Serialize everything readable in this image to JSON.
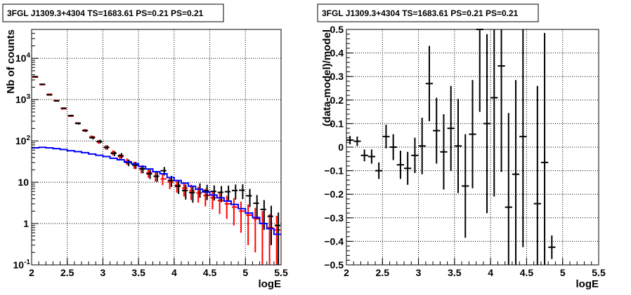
{
  "chart_data": [
    {
      "type": "histogram",
      "title": "3FGL J1309.3+4304 TS=1683.61 PS=0.21 PS=0.21",
      "xlabel": "logE",
      "ylabel": "Nb of counts",
      "xlim": [
        2,
        5.5
      ],
      "ylim": [
        0.1,
        50000
      ],
      "yscale": "log",
      "grid": true,
      "x_ticks": [
        "2",
        "2.5",
        "3",
        "3.5",
        "4",
        "4.5",
        "5",
        "5.5"
      ],
      "y_ticks": [
        {
          "value": 0.1,
          "label": "10",
          "exp": "-1"
        },
        {
          "value": 1,
          "label": "1",
          "exp": ""
        },
        {
          "value": 10,
          "label": "10",
          "exp": ""
        },
        {
          "value": 100,
          "label": "10",
          "exp": "2"
        },
        {
          "value": 1000,
          "label": "10",
          "exp": "3"
        },
        {
          "value": 10000,
          "label": "10",
          "exp": "4"
        }
      ],
      "bin_edges": [
        2.0,
        2.1,
        2.2,
        2.3,
        2.4,
        2.5,
        2.6,
        2.7,
        2.8,
        2.9,
        3.0,
        3.1,
        3.2,
        3.3,
        3.4,
        3.5,
        3.6,
        3.7,
        3.8,
        3.9,
        4.0,
        4.1,
        4.2,
        4.3,
        4.4,
        4.5,
        4.6,
        4.7,
        4.8,
        4.9,
        5.0,
        5.1,
        5.2,
        5.3,
        5.4,
        5.5
      ],
      "series": [
        {
          "color": "#ff0000",
          "style": "errorbar",
          "values": [
            3500,
            2300,
            1350,
            950,
            600,
            400,
            270,
            180,
            125,
            95,
            70,
            52,
            42,
            32,
            26,
            21,
            17,
            14,
            12,
            10,
            8.5,
            7.2,
            6.2,
            5.5,
            4.8,
            4.2,
            3.6,
            3.0,
            2.5,
            2.0,
            1.6,
            1.3,
            1.0,
            0.8,
            0.7
          ],
          "errors": [
            60,
            48,
            37,
            31,
            25,
            20,
            16,
            13,
            11,
            10,
            8.4,
            7.2,
            6.5,
            5.7,
            5.1,
            4.6,
            4.1,
            3.7,
            3.5,
            3.2,
            2.9,
            2.7,
            2.5,
            2.3,
            2.2,
            2.0,
            1.9,
            1.7,
            1.6,
            1.4,
            1.3,
            1.1,
            1.0,
            0.9,
            0.84
          ]
        },
        {
          "color": "#000000",
          "style": "errorbar",
          "values": [
            3600,
            2350,
            1300,
            930,
            620,
            410,
            265,
            178,
            120,
            97,
            70,
            50,
            44,
            30,
            26,
            21,
            16,
            14,
            19,
            11,
            8,
            6.3,
            5.6,
            6.8,
            6.2,
            6,
            5.7,
            5.9,
            6.3,
            6.4,
            4.7,
            3.1,
            2.2,
            1.5,
            0.9
          ],
          "errors": [
            60,
            48,
            36,
            30,
            25,
            20,
            16,
            13,
            11,
            10,
            8.4,
            7.1,
            6.6,
            5.5,
            5.1,
            4.6,
            4.0,
            3.7,
            4.4,
            3.3,
            2.8,
            2.5,
            2.4,
            2.6,
            2.5,
            2.4,
            2.4,
            2.4,
            2.5,
            2.5,
            2.2,
            1.8,
            1.5,
            1.2,
            0.95
          ]
        },
        {
          "color": "#0000ff",
          "style": "step",
          "values": [
            68,
            70,
            68,
            65,
            62,
            58,
            55,
            52,
            48,
            45,
            42,
            38,
            35,
            31,
            28,
            24,
            21,
            18,
            16,
            13,
            11,
            9.5,
            8,
            6.8,
            5.8,
            4.9,
            4.2,
            3.5,
            2.9,
            2.3,
            1.8,
            1.4,
            1.0,
            0.75,
            0.55
          ]
        }
      ]
    },
    {
      "type": "errorbar",
      "title": "3FGL J1309.3+4304 TS=1683.61 PS=0.21 PS=0.21",
      "xlabel": "logE",
      "ylabel": "(data-model)/model",
      "xlim": [
        2,
        5.5
      ],
      "ylim": [
        -0.5,
        0.5
      ],
      "grid": true,
      "x_ticks": [
        "2",
        "2.5",
        "3",
        "3.5",
        "4",
        "4.5",
        "5",
        "5.5"
      ],
      "y_ticks": [
        "-0.5",
        "-0.4",
        "-0.3",
        "-0.2",
        "-0.1",
        "0",
        "0.1",
        "0.2",
        "0.3",
        "0.4",
        "0.5"
      ],
      "series": [
        {
          "color": "#000000",
          "x": [
            2.05,
            2.15,
            2.25,
            2.35,
            2.45,
            2.55,
            2.65,
            2.75,
            2.85,
            2.95,
            3.05,
            3.15,
            3.25,
            3.35,
            3.45,
            3.55,
            3.65,
            3.75,
            3.85,
            3.95,
            4.05,
            4.15,
            4.25,
            4.35,
            4.45,
            4.65,
            4.75,
            4.85
          ],
          "y": [
            0.03,
            0.025,
            -0.035,
            -0.04,
            -0.1,
            0.045,
            0.0,
            -0.075,
            -0.09,
            -0.035,
            0.005,
            0.27,
            0.07,
            -0.02,
            0.08,
            0.005,
            -0.165,
            0.055,
            0.5,
            0.1,
            0.21,
            0.345,
            -0.255,
            -0.115,
            0.045,
            -0.24,
            -0.065,
            -0.425
          ],
          "err": [
            0.018,
            0.02,
            0.025,
            0.03,
            0.035,
            0.05,
            0.055,
            0.06,
            0.07,
            0.075,
            0.12,
            0.16,
            0.14,
            0.16,
            0.18,
            0.2,
            0.22,
            0.23,
            0.35,
            0.38,
            0.42,
            0.45,
            0.4,
            0.4,
            0.47,
            0.5,
            0.55,
            0.05
          ]
        }
      ]
    }
  ]
}
